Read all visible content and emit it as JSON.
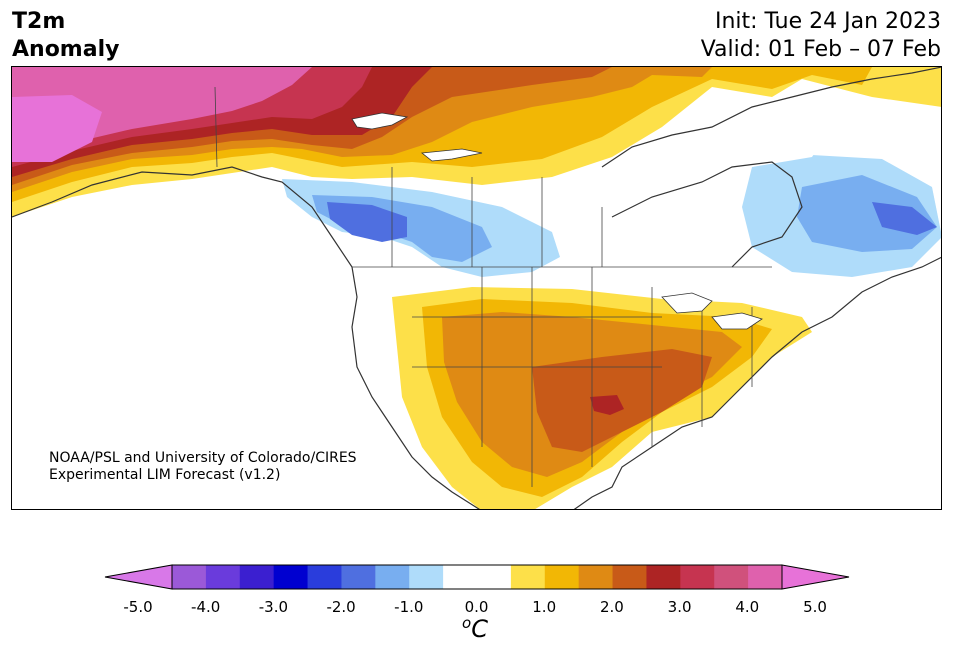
{
  "title": {
    "left_line1": "T2m",
    "left_line2": "Anomaly",
    "right_line1": "Init: Tue 24 Jan 2023",
    "right_line2": "Valid: 01 Feb – 07 Feb"
  },
  "credit": {
    "line1": "NOAA/PSL and University of Colorado/CIRES",
    "line2": "Experimental LIM Forecast (v1.2)"
  },
  "colorbar": {
    "unit_base": "C",
    "unit_sup": "o",
    "ticks": [
      "-5.0",
      "-4.0",
      "-3.0",
      "-2.0",
      "-1.0",
      "0.0",
      "1.0",
      "2.0",
      "3.0",
      "4.0",
      "5.0"
    ],
    "colors": [
      "#d878e8",
      "#9b59d8",
      "#6a3bdc",
      "#3b1fd0",
      "#0000d0",
      "#2a3ddc",
      "#4f6fe0",
      "#78aef0",
      "#afdcfa",
      "#ffffff",
      "#ffffff",
      "#fde049",
      "#f2b705",
      "#df8a14",
      "#c85a18",
      "#ad2424",
      "#c63450",
      "#d0517c",
      "#df61ad",
      "#e772d8"
    ]
  },
  "map": {
    "region": "North America",
    "anomaly_colors": {
      "warm_1": "#fde049",
      "warm_2": "#f2b705",
      "warm_3": "#df8a14",
      "warm_4": "#c85a18",
      "warm_5": "#ad2424",
      "warm_6": "#c63450",
      "warm_7": "#df61ad",
      "warm_8": "#e772d8",
      "cool_1": "#afdcfa",
      "cool_2": "#78aef0",
      "cool_3": "#4f6fe0"
    }
  }
}
